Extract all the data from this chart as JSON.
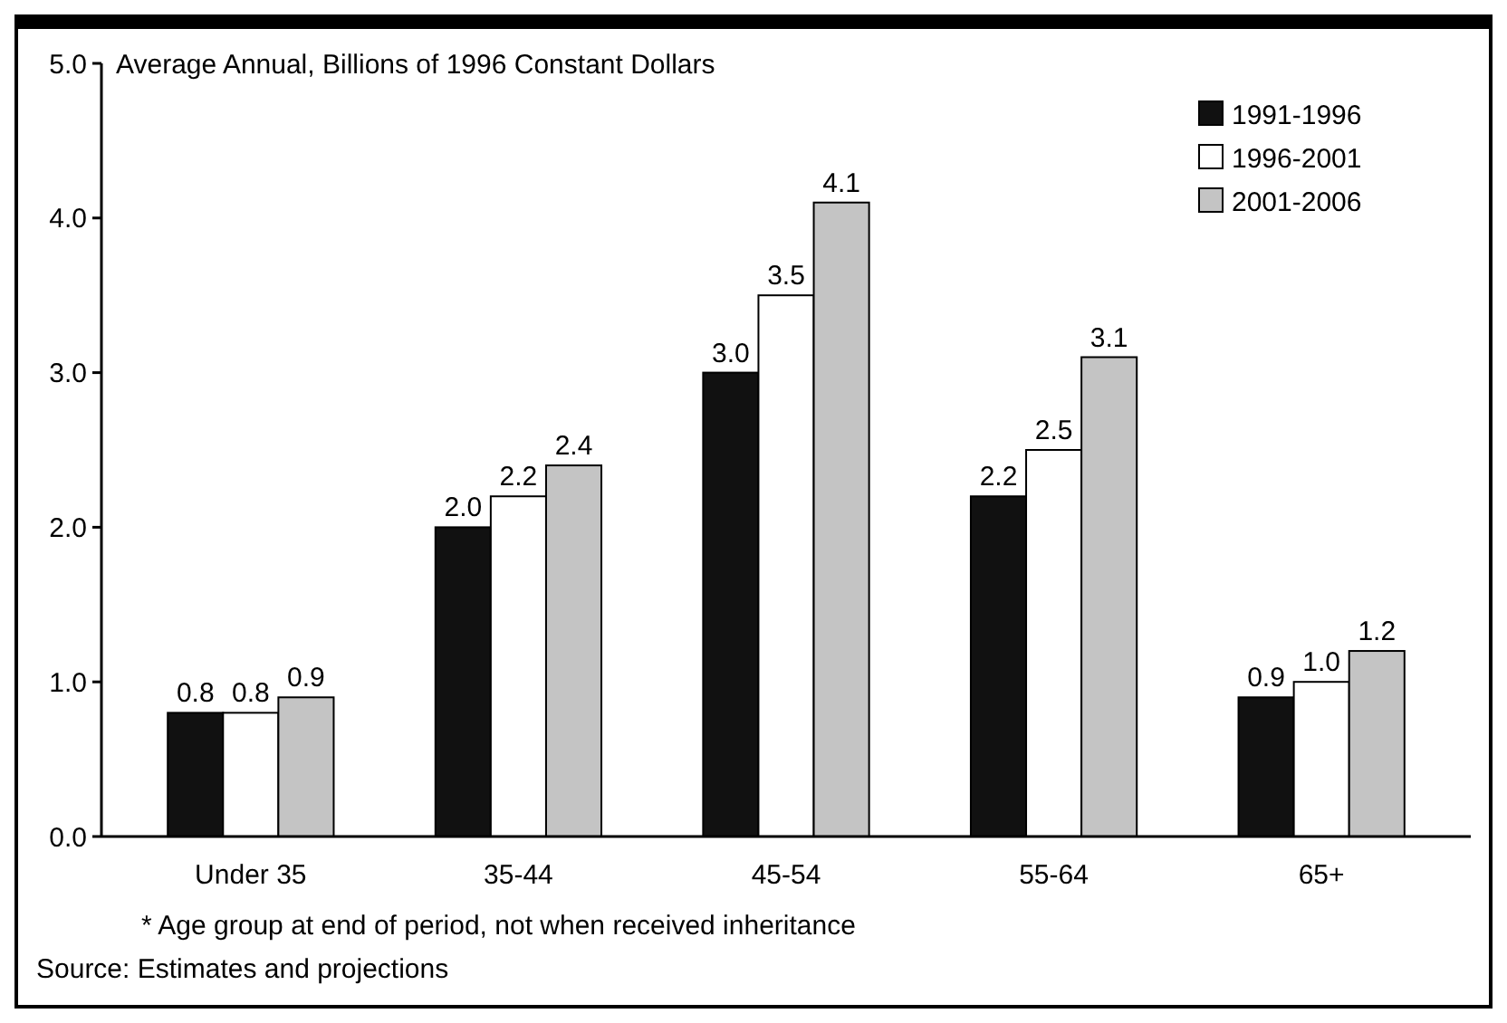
{
  "chart_data": {
    "type": "bar",
    "ylabel": "Average Annual, Billions of 1996 Constant Dollars",
    "categories": [
      "Under 35",
      "35-44",
      "45-54",
      "55-64",
      "65+"
    ],
    "series": [
      {
        "name": "1991-1996",
        "color": "#111111",
        "values": [
          0.8,
          2.0,
          3.0,
          2.2,
          0.9
        ],
        "value_labels": [
          "0.8",
          "2.0",
          "3.0",
          "2.2",
          "0.9"
        ]
      },
      {
        "name": "1996-2001",
        "color": "#ffffff",
        "values": [
          0.8,
          2.2,
          3.5,
          2.5,
          1.0
        ],
        "value_labels": [
          "0.8",
          "2.2",
          "3.5",
          "2.5",
          "1.0"
        ]
      },
      {
        "name": "2001-2006",
        "color": "#c4c4c4",
        "values": [
          0.9,
          2.4,
          4.1,
          3.1,
          1.2
        ],
        "value_labels": [
          "0.9",
          "2.4",
          "4.1",
          "3.1",
          "1.2"
        ]
      }
    ],
    "ylim": [
      0,
      5
    ],
    "yticks": [
      {
        "value": 0,
        "label": "0.0"
      },
      {
        "value": 1,
        "label": "1.0"
      },
      {
        "value": 2,
        "label": "2.0"
      },
      {
        "value": 3,
        "label": "3.0"
      },
      {
        "value": 4,
        "label": "4.0"
      },
      {
        "value": 5,
        "label": "5.0"
      }
    ],
    "grid": false,
    "legend": "top right",
    "annotations": [
      "* Age group at end of period, not when received inheritance",
      "Source: Estimates and projections"
    ]
  }
}
